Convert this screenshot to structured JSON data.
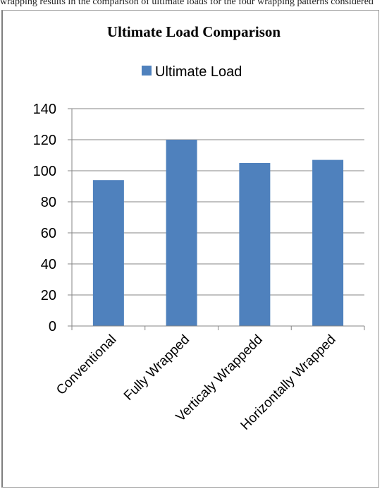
{
  "page": {
    "top_caption": "wrapping results in the comparison of ultimate loads for the four wrapping patterns considered"
  },
  "chart_data": {
    "type": "bar",
    "title": "Ultimate Load Comparison",
    "categories": [
      "Conventional",
      "Fully Wrapped",
      "Verticaly Wrappedd",
      "Horizontally Wrapped"
    ],
    "series": [
      {
        "name": "Ultimate Load",
        "values": [
          94,
          120,
          105,
          107
        ]
      }
    ],
    "ylim": [
      0,
      140
    ],
    "yticks": [
      0,
      20,
      40,
      60,
      80,
      100,
      120,
      140
    ],
    "grid": true,
    "legend_position": "top",
    "colors": {
      "bar": "#4f81bd",
      "grid": "#868686",
      "axis": "#868686"
    }
  }
}
